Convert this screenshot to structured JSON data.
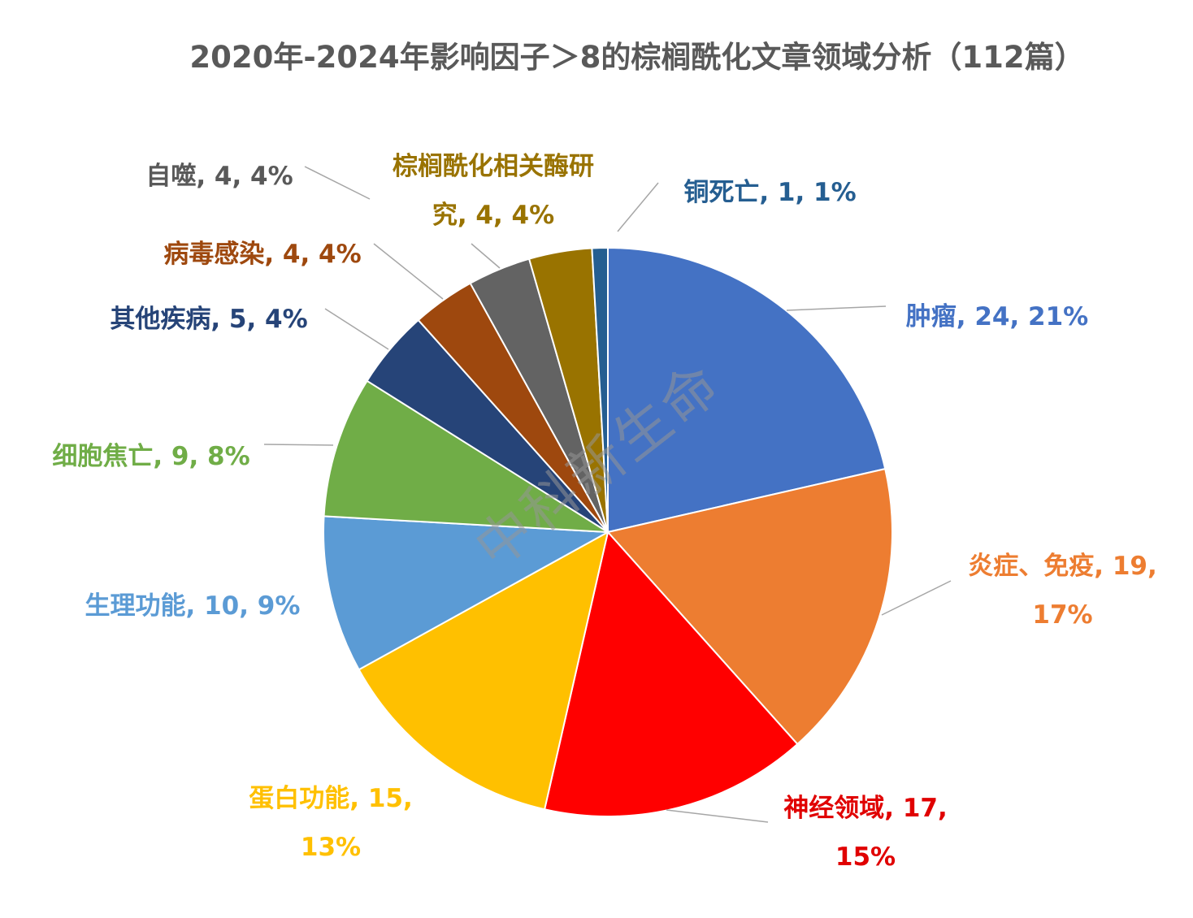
{
  "chart_data": {
    "type": "pie",
    "title": "2020年-2024年影响因子＞8的棕榈酰化文章领域分析（112篇）",
    "total": 112,
    "start": "12 o'clock, clockwise",
    "slices": [
      {
        "name": "肿瘤",
        "value": 24,
        "percent": "21%",
        "color": "#4472C4"
      },
      {
        "name": "炎症、免疫",
        "value": 19,
        "percent": "17%",
        "color": "#ED7D31"
      },
      {
        "name": "神经领域",
        "value": 17,
        "percent": "15%",
        "color": "#FF0000"
      },
      {
        "name": "蛋白功能",
        "value": 15,
        "percent": "13%",
        "color": "#FFC000"
      },
      {
        "name": "生理功能",
        "value": 10,
        "percent": "9%",
        "color": "#5B9BD5"
      },
      {
        "name": "细胞焦亡",
        "value": 9,
        "percent": "8%",
        "color": "#70AD47"
      },
      {
        "name": "其他疾病",
        "value": 5,
        "percent": "4%",
        "color": "#264478"
      },
      {
        "name": "病毒感染",
        "value": 4,
        "percent": "4%",
        "color": "#9E480E"
      },
      {
        "name": "自噬",
        "value": 4,
        "percent": "4%",
        "color": "#636363"
      },
      {
        "name": "棕榈酰化相关酶研究",
        "value": 4,
        "percent": "4%",
        "color": "#997300"
      },
      {
        "name": "铜死亡",
        "value": 1,
        "percent": "1%",
        "color": "#255E91"
      }
    ],
    "label_colors": [
      "#4472C4",
      "#ED7D31",
      "#E00000",
      "#FFC000",
      "#5B9BD5",
      "#70AD47",
      "#264478",
      "#9E480E",
      "#595959",
      "#997300",
      "#255E91"
    ],
    "watermark": "中科新生命"
  }
}
